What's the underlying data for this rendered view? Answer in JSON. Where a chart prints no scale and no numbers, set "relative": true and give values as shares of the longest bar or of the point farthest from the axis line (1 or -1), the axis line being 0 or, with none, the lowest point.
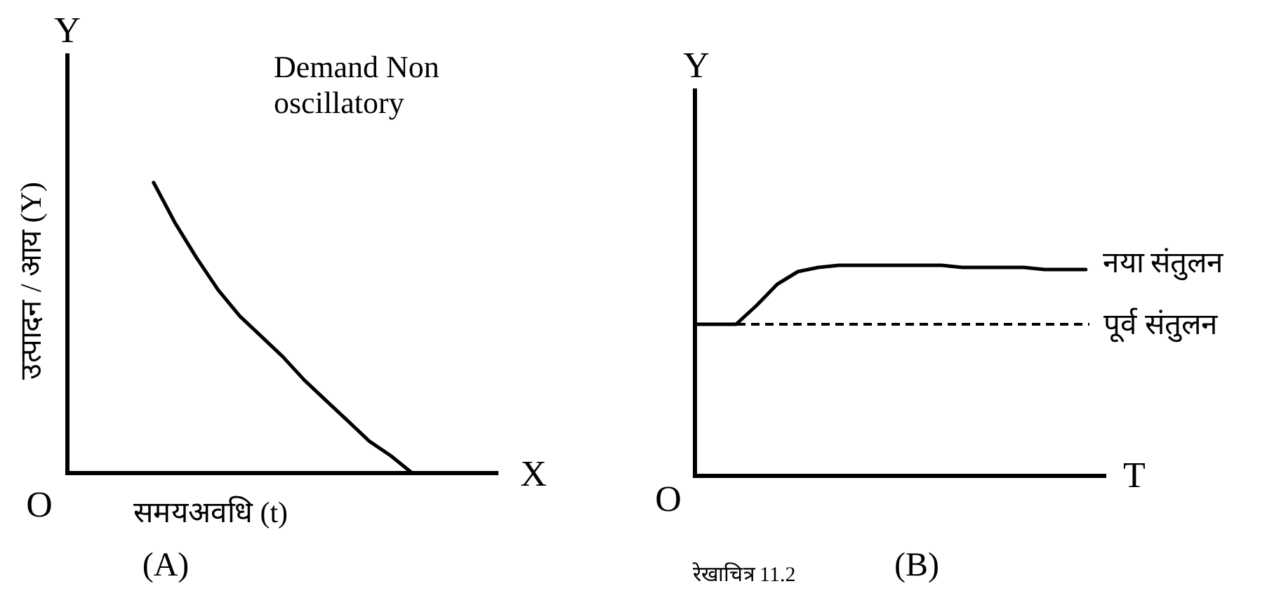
{
  "chart_data": [
    {
      "type": "line",
      "relative": true,
      "title": "(A)",
      "xlabel": "समयअवधि (t)",
      "ylabel": "उत्पादन / आय (Y)",
      "annotations": [
        "Y",
        "X",
        "O",
        "Demand Non oscillatory",
        "रेखाचित्र 11.2"
      ],
      "categories": [
        null,
        null,
        null,
        null,
        null,
        null,
        null,
        null,
        null,
        null,
        null,
        null,
        null,
        null,
        null,
        null,
        null,
        null,
        null,
        null,
        null
      ],
      "series": [
        {
          "color": "#000000",
          "values": [
            null,
            null,
            null,
            null,
            1,
            0.86,
            0.74,
            0.63,
            0.54,
            0.47,
            0.4,
            0.32,
            0.25,
            0.18,
            0.11,
            0.06,
            0,
            null,
            null,
            null,
            null
          ]
        }
      ]
    },
    {
      "type": "line",
      "relative": true,
      "title": "(B)",
      "annotations": [
        "Y",
        "T",
        "O"
      ],
      "categories": [
        null,
        null,
        null,
        null,
        null,
        null,
        null,
        null,
        null,
        null,
        null,
        null,
        null,
        null,
        null,
        null,
        null,
        null,
        null,
        null,
        null
      ],
      "series": [
        {
          "name": "नया संतुलन",
          "color": "#000000",
          "values": [
            0.72,
            0.72,
            0.72,
            0.81,
            0.91,
            0.97,
            0.99,
            1,
            1,
            1,
            1,
            1,
            1,
            0.99,
            0.99,
            0.99,
            0.99,
            0.98,
            0.98,
            0.98,
            null
          ]
        }
      ],
      "ref_lines": [
        {
          "axis": "y",
          "value": 0.72,
          "label": "पूर्व संतुलन",
          "line_style": "dashed"
        }
      ]
    }
  ]
}
